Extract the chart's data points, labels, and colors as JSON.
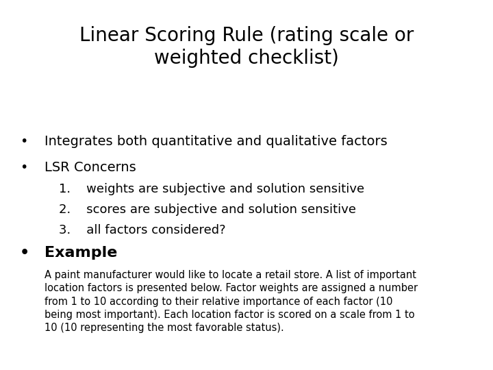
{
  "title_line1": "Linear Scoring Rule (rating scale or",
  "title_line2": "weighted checklist)",
  "bullet1": "Integrates both quantitative and qualitative factors",
  "bullet2": "LSR Concerns",
  "sub1": "1.    weights are subjective and solution sensitive",
  "sub2": "2.    scores are subjective and solution sensitive",
  "sub3": "3.    all factors considered?",
  "bullet3": "Example",
  "paragraph": "A paint manufacturer would like to locate a retail store. A list of important\nlocation factors is presented below. Factor weights are assigned a number\nfrom 1 to 10 according to their relative importance of each factor (10\nbeing most important). Each location factor is scored on a scale from 1 to\n10 (10 representing the most favorable status).",
  "bg_color": "#ffffff",
  "text_color": "#000000",
  "title_fontsize": 20,
  "bullet_fontsize": 14,
  "sub_fontsize": 13,
  "example_fontsize": 16,
  "para_fontsize": 10.5
}
